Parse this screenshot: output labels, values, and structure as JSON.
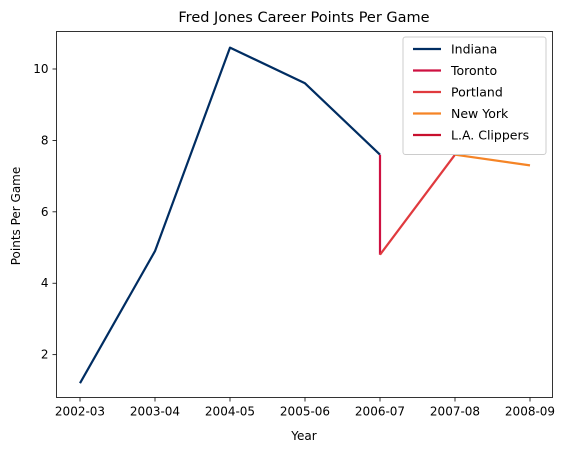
{
  "chart_data": {
    "type": "line",
    "title": "Fred Jones  Career Points Per Game",
    "xlabel": "Year",
    "ylabel": "Points Per Game",
    "categories": [
      "2002-03",
      "2003-04",
      "2004-05",
      "2005-06",
      "2006-07",
      "2007-08",
      "2008-09"
    ],
    "yticks": [
      2,
      4,
      6,
      8,
      10
    ],
    "ylim": [
      0.8,
      11.05
    ],
    "grid": false,
    "legend_position": "top-right",
    "series": [
      {
        "name": "Indiana",
        "color": "#002d62",
        "points": [
          [
            "2002-03",
            1.2
          ],
          [
            "2003-04",
            4.9
          ],
          [
            "2004-05",
            10.6
          ],
          [
            "2005-06",
            9.6
          ],
          [
            "2006-07",
            7.6
          ]
        ]
      },
      {
        "name": "Toronto",
        "color": "#ce1141",
        "points": [
          [
            "2006-07",
            7.6
          ],
          [
            "2006-07",
            4.8
          ]
        ]
      },
      {
        "name": "Portland",
        "color": "#e03a3e",
        "points": [
          [
            "2006-07",
            4.8
          ],
          [
            "2007-08",
            7.6
          ]
        ]
      },
      {
        "name": "New York",
        "color": "#f58426",
        "points": [
          [
            "2007-08",
            7.6
          ],
          [
            "2008-09",
            7.3
          ]
        ]
      },
      {
        "name": "L.A. Clippers",
        "color": "#c8102e",
        "points": []
      }
    ]
  }
}
